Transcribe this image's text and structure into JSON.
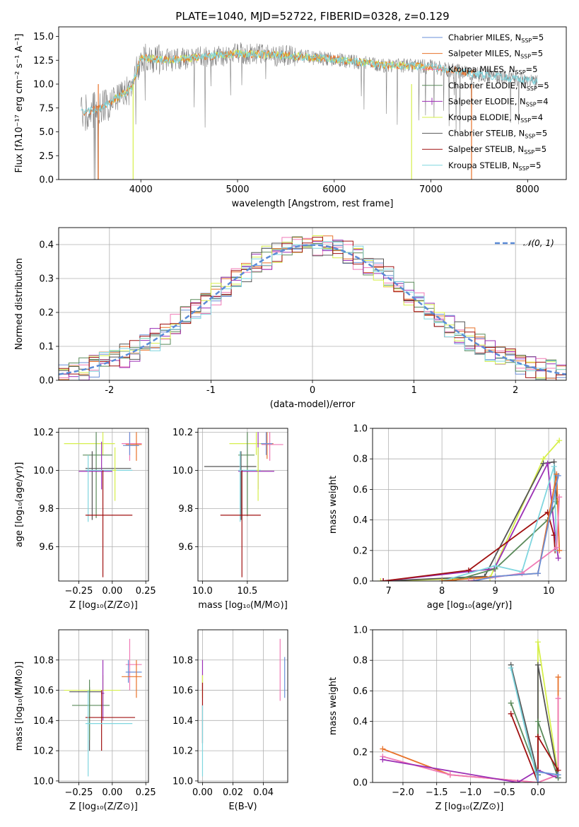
{
  "title": "PLATE=1040, MJD=52722, FIBERID=0328, z=0.129",
  "colors": {
    "chabrier_miles": "#6a8fd8",
    "salpeter_miles": "#e8722a",
    "kroupa_miles": "#f07ab6",
    "chabrier_elodie": "#5a8a5a",
    "salpeter_elodie": "#9b2fb5",
    "kroupa_elodie": "#d6ef4a",
    "chabrier_stelib": "#555555",
    "salpeter_stelib": "#a01010",
    "kroupa_stelib": "#7fd6df",
    "normal": "#5b8bd6",
    "data_grey": "#808080"
  },
  "chart_data": [
    {
      "type": "line",
      "panel": "spectrum",
      "xlabel": "wavelength [Angstrom, rest frame]",
      "ylabel": "Flux [fλ10⁻¹⁷ erg cm⁻² s⁻¹ A⁻¹]",
      "xlim": [
        3150,
        8400
      ],
      "ylim": [
        0,
        16
      ],
      "xticks": [
        4000,
        5000,
        6000,
        7000,
        8000
      ],
      "yticks": [
        0.0,
        2.5,
        5.0,
        7.5,
        10.0,
        12.5,
        15.0
      ],
      "ytick_labels": [
        "0.0",
        "2.5",
        "5.0",
        "7.5",
        "10.0",
        "12.5",
        "15.0"
      ],
      "legend": [
        "Chabrier MILES, N_SSP=5",
        "Salpeter MILES, N_SSP=5",
        "Kroupa MILES, N_SSP=5",
        "Chabrier ELODIE, N_SSP=5",
        "Salpeter ELODIE, N_SSP=4",
        "Kroupa ELODIE, N_SSP=4",
        "Chabrier STELIB, N_SSP=5",
        "Salpeter STELIB, N_SSP=5",
        "Kroupa STELIB, N_SSP=5"
      ],
      "legend_position": "upper-right",
      "continuum": {
        "x": [
          3400,
          3600,
          3900,
          4000,
          4300,
          4700,
          5000,
          5500,
          6000,
          6500,
          7000,
          7500,
          8100
        ],
        "y": [
          7.0,
          7.6,
          9.5,
          12.8,
          12.5,
          12.9,
          13.2,
          13.0,
          12.6,
          12.0,
          11.8,
          11.0,
          10.3
        ]
      }
    },
    {
      "type": "bar",
      "panel": "residual-histogram",
      "xlabel": "(data-model)/error",
      "ylabel": "Normed distribution",
      "xlim": [
        -2.5,
        2.5
      ],
      "ylim": [
        0,
        0.45
      ],
      "xticks": [
        -2,
        -1,
        0,
        1,
        2
      ],
      "yticks": [
        0.0,
        0.1,
        0.2,
        0.3,
        0.4
      ],
      "ytick_labels": [
        "0.0",
        "0.1",
        "0.2",
        "0.3",
        "0.4"
      ],
      "bin_width": 0.1,
      "bins_start": -2.5,
      "legend": [
        "𝒩(0, 1)"
      ],
      "legend_position": "upper-right",
      "normal_curve": {
        "mean": 0,
        "sigma": 1
      }
    },
    {
      "type": "scatter",
      "panel": "age-vs-Z",
      "xlabel": "Z [log₁₀(Z/Z⊙)]",
      "ylabel": "age  [log₁₀(age/yr)]",
      "xlim": [
        -0.4,
        0.27
      ],
      "ylim": [
        9.42,
        10.22
      ],
      "xticks": [
        -0.25,
        0.0,
        0.25
      ],
      "xtick_labels": [
        "−0.25",
        "0.00",
        "0.25"
      ],
      "yticks": [
        9.6,
        9.8,
        10.0,
        10.2
      ],
      "ytick_labels": [
        "9.6",
        "9.8",
        "10.0",
        "10.2"
      ],
      "errorbars": [
        {
          "c": "kroupa_elodie",
          "x": -0.07,
          "xe": [
            -0.36,
            0.02
          ],
          "y": 10.14,
          "ye": [
            10.08,
            10.2
          ]
        },
        {
          "c": "kroupa_miles",
          "x": 0.13,
          "xe": [
            0.07,
            0.22
          ],
          "y": 10.14,
          "ye": [
            10.05,
            10.2
          ]
        },
        {
          "c": "salpeter_miles",
          "x": 0.18,
          "xe": [
            0.1,
            0.22
          ],
          "y": 10.135,
          "ye": [
            10.05,
            10.2
          ]
        },
        {
          "c": "chabrier_miles",
          "x": 0.13,
          "xe": [
            0.08,
            0.2
          ],
          "y": 10.13,
          "ye": [
            10.08,
            10.2
          ]
        },
        {
          "c": "chabrier_elodie",
          "x": -0.12,
          "xe": [
            -0.22,
            0.0
          ],
          "y": 10.08,
          "ye": [
            9.75,
            10.2
          ]
        },
        {
          "c": "chabrier_stelib",
          "x": -0.15,
          "xe": [
            -0.2,
            0.14
          ],
          "y": 10.01,
          "ye": [
            9.74,
            10.1
          ]
        },
        {
          "c": "salpeter_elodie",
          "x": -0.08,
          "xe": [
            -0.25,
            0.0
          ],
          "y": 9.995,
          "ye": [
            9.9,
            10.15
          ]
        },
        {
          "c": "kroupa_stelib",
          "x": -0.18,
          "xe": [
            -0.2,
            0.15
          ],
          "y": 10.0,
          "ye": [
            9.73,
            10.08
          ]
        },
        {
          "c": "salpeter_stelib",
          "x": -0.07,
          "xe": [
            -0.2,
            0.15
          ],
          "y": 9.765,
          "ye": [
            9.44,
            10.0
          ]
        },
        {
          "c": "kroupa_elodie",
          "x": 0.02,
          "xe": [
            0.0,
            0.03
          ],
          "y": 10.0,
          "ye": [
            9.84,
            10.12
          ]
        }
      ]
    },
    {
      "type": "scatter",
      "panel": "age-vs-mass",
      "xlabel": "mass [log₁₀(M/M⊙)]",
      "xlim": [
        9.95,
        10.95
      ],
      "ylim": [
        9.42,
        10.22
      ],
      "xticks": [
        10.0,
        10.5
      ],
      "xtick_labels": [
        "10.0",
        "10.5"
      ],
      "yticks": [
        9.6,
        9.8,
        10.0,
        10.2
      ],
      "ytick_labels": [
        "9.6",
        "9.8",
        "10.0",
        "10.2"
      ],
      "errorbars": [
        {
          "c": "kroupa_elodie",
          "x": 10.6,
          "xe": [
            10.3,
            10.68
          ],
          "y": 10.14,
          "ye": [
            10.08,
            10.2
          ]
        },
        {
          "c": "kroupa_miles",
          "x": 10.75,
          "xe": [
            10.66,
            10.9
          ],
          "y": 10.135,
          "ye": [
            10.05,
            10.2
          ]
        },
        {
          "c": "salpeter_miles",
          "x": 10.72,
          "xe": [
            10.65,
            10.79
          ],
          "y": 10.14,
          "ye": [
            10.06,
            10.2
          ]
        },
        {
          "c": "chabrier_miles",
          "x": 10.71,
          "xe": [
            10.65,
            10.78
          ],
          "y": 10.14,
          "ye": [
            10.08,
            10.2
          ]
        },
        {
          "c": "chabrier_elodie",
          "x": 10.5,
          "xe": [
            10.4,
            10.58
          ],
          "y": 10.08,
          "ye": [
            9.76,
            10.2
          ]
        },
        {
          "c": "chabrier_stelib",
          "x": 10.43,
          "xe": [
            10.02,
            10.6
          ],
          "y": 10.02,
          "ye": [
            9.74,
            10.1
          ]
        },
        {
          "c": "salpeter_elodie",
          "x": 10.62,
          "xe": [
            10.4,
            10.8
          ],
          "y": 9.995,
          "ye": [
            9.9,
            10.2
          ]
        },
        {
          "c": "kroupa_stelib",
          "x": 10.42,
          "xe": [
            10.4,
            10.65
          ],
          "y": 10.0,
          "ye": [
            9.73,
            10.1
          ]
        },
        {
          "c": "salpeter_stelib",
          "x": 10.44,
          "xe": [
            10.2,
            10.65
          ],
          "y": 9.765,
          "ye": [
            9.44,
            10.0
          ]
        },
        {
          "c": "kroupa_elodie",
          "x": 10.62,
          "xe": [
            10.6,
            10.63
          ],
          "y": 10.0,
          "ye": [
            9.84,
            10.12
          ]
        }
      ]
    },
    {
      "type": "line",
      "panel": "mass-weight-vs-age",
      "xlabel": "age  [log₁₀(age/yr)]",
      "ylabel": "mass weight",
      "xlim": [
        6.7,
        10.33
      ],
      "ylim": [
        0,
        1.0
      ],
      "xticks": [
        7,
        8,
        9,
        10
      ],
      "xtick_labels": [
        "7",
        "8",
        "9",
        "10"
      ],
      "yticks": [
        0.0,
        0.2,
        0.4,
        0.6,
        0.8,
        1.0
      ],
      "ytick_labels": [
        "0.0",
        "0.2",
        "0.4",
        "0.6",
        "0.8",
        "1.0"
      ],
      "series": [
        {
          "c": "kroupa_elodie",
          "x": [
            6.85,
            8.9,
            9.9,
            10.2
          ],
          "y": [
            0.0,
            0.02,
            0.8,
            0.92
          ]
        },
        {
          "c": "chabrier_stelib",
          "x": [
            6.9,
            8.8,
            9.9,
            10.1,
            10.15
          ],
          "y": [
            0.0,
            0.03,
            0.77,
            0.78,
            0.52
          ]
        },
        {
          "c": "salpeter_elodie",
          "x": [
            6.9,
            8.98,
            9.98,
            10.12,
            10.18
          ],
          "y": [
            0.0,
            0.08,
            0.77,
            0.3,
            0.15
          ]
        },
        {
          "c": "salpeter_stelib",
          "x": [
            6.9,
            8.5,
            9.98,
            10.1,
            10.12
          ],
          "y": [
            0.0,
            0.07,
            0.45,
            0.3,
            0.2
          ]
        },
        {
          "c": "chabrier_elodie",
          "x": [
            8.2,
            9.0,
            9.98,
            10.15
          ],
          "y": [
            0.0,
            0.08,
            0.4,
            0.52
          ]
        },
        {
          "c": "kroupa_stelib",
          "x": [
            8.0,
            9.0,
            9.5,
            10.1,
            10.15
          ],
          "y": [
            0.0,
            0.1,
            0.06,
            0.75,
            0.2
          ]
        },
        {
          "c": "salpeter_miles",
          "x": [
            8.0,
            9.0,
            9.8,
            10.15,
            10.2
          ],
          "y": [
            0.0,
            0.03,
            0.05,
            0.7,
            0.2
          ]
        },
        {
          "c": "kroupa_miles",
          "x": [
            8.5,
            9.5,
            10.15,
            10.2
          ],
          "y": [
            0.0,
            0.05,
            0.22,
            0.55
          ]
        },
        {
          "c": "chabrier_miles",
          "x": [
            8.6,
            9.0,
            9.8,
            10.18
          ],
          "y": [
            0.0,
            0.03,
            0.05,
            0.69
          ]
        }
      ]
    },
    {
      "type": "scatter",
      "panel": "mass-vs-Z",
      "xlabel": "Z [log₁₀(Z/Z⊙)]",
      "ylabel": "mass [log₁₀(M/M⊙)]",
      "xlim": [
        -0.4,
        0.27
      ],
      "ylim": [
        9.99,
        11.0
      ],
      "xticks": [
        -0.25,
        0.0,
        0.25
      ],
      "xtick_labels": [
        "−0.25",
        "0.00",
        "0.25"
      ],
      "yticks": [
        10.0,
        10.2,
        10.4,
        10.6,
        10.8
      ],
      "ytick_labels": [
        "10.0",
        "10.2",
        "10.4",
        "10.6",
        "10.8"
      ],
      "errorbars": [
        {
          "c": "kroupa_miles",
          "x": 0.13,
          "xe": [
            0.1,
            0.22
          ],
          "y": 10.77,
          "ye": [
            10.6,
            10.94
          ]
        },
        {
          "c": "chabrier_miles",
          "x": 0.12,
          "xe": [
            0.1,
            0.22
          ],
          "y": 10.72,
          "ye": [
            10.65,
            10.8
          ]
        },
        {
          "c": "salpeter_miles",
          "x": 0.18,
          "xe": [
            0.07,
            0.22
          ],
          "y": 10.69,
          "ye": [
            10.55,
            10.8
          ]
        },
        {
          "c": "kroupa_elodie",
          "x": -0.07,
          "xe": [
            -0.36,
            0.06
          ],
          "y": 10.6,
          "ye": [
            10.5,
            10.7
          ]
        },
        {
          "c": "chabrier_stelib",
          "x": -0.17,
          "xe": [
            -0.32,
            -0.08
          ],
          "y": 10.59,
          "ye": [
            10.2,
            10.62
          ]
        },
        {
          "c": "chabrier_elodie",
          "x": -0.17,
          "xe": [
            -0.3,
            -0.02
          ],
          "y": 10.5,
          "ye": [
            10.27,
            10.67
          ]
        },
        {
          "c": "salpeter_elodie",
          "x": -0.07,
          "xe": [
            -0.08,
            -0.06
          ],
          "y": 10.58,
          "ye": [
            10.4,
            10.8
          ]
        },
        {
          "c": "salpeter_stelib",
          "x": -0.08,
          "xe": [
            -0.2,
            0.17
          ],
          "y": 10.42,
          "ye": [
            10.2,
            10.6
          ]
        },
        {
          "c": "kroupa_stelib",
          "x": -0.18,
          "xe": [
            -0.2,
            0.15
          ],
          "y": 10.38,
          "ye": [
            10.03,
            10.6
          ]
        }
      ]
    },
    {
      "type": "scatter",
      "panel": "mass-vs-EBV",
      "xlabel": "E(B-V)",
      "xlim": [
        -0.003,
        0.056
      ],
      "ylim": [
        9.99,
        11.0
      ],
      "xticks": [
        0.0,
        0.02,
        0.04
      ],
      "xtick_labels": [
        "0.00",
        "0.02",
        "0.04"
      ],
      "yticks": [
        10.0,
        10.2,
        10.4,
        10.6,
        10.8
      ],
      "ytick_labels": [
        "10.0",
        "10.2",
        "10.4",
        "10.6",
        "10.8"
      ],
      "errorbars": [
        {
          "c": "kroupa_miles",
          "x": 0.051,
          "xe": [
            0.051,
            0.051
          ],
          "y": 10.73,
          "ye": [
            10.53,
            10.94
          ]
        },
        {
          "c": "chabrier_miles",
          "x": 0.054,
          "xe": [
            0.054,
            0.054
          ],
          "y": 10.7,
          "ye": [
            10.55,
            10.82
          ]
        },
        {
          "c": "salpeter_elodie",
          "x": 0.0,
          "xe": [
            0.0,
            0.0
          ],
          "y": 10.7,
          "ye": [
            10.6,
            10.8
          ]
        },
        {
          "c": "kroupa_elodie",
          "x": 0.0,
          "xe": [
            0.0,
            0.0
          ],
          "y": 10.63,
          "ye": [
            10.55,
            10.7
          ]
        },
        {
          "c": "salpeter_stelib",
          "x": 0.0,
          "xe": [
            0.0,
            0.0
          ],
          "y": 10.45,
          "ye": [
            10.25,
            10.65
          ]
        },
        {
          "c": "kroupa_stelib",
          "x": 0.0,
          "xe": [
            0.0,
            0.0
          ],
          "y": 10.3,
          "ye": [
            10.03,
            10.5
          ]
        }
      ]
    },
    {
      "type": "line",
      "panel": "mass-weight-vs-Z",
      "xlabel": "Z [log₁₀(Z/Z⊙)]",
      "ylabel": "mass weight",
      "xlim": [
        -2.45,
        0.42
      ],
      "ylim": [
        0,
        1.0
      ],
      "xticks": [
        -2.0,
        -1.5,
        -1.0,
        -0.5,
        0.0
      ],
      "xtick_labels": [
        "−2.0",
        "−1.5",
        "−1.0",
        "−0.5",
        "0.0"
      ],
      "yticks": [
        0.0,
        0.2,
        0.4,
        0.6,
        0.8,
        1.0
      ],
      "ytick_labels": [
        "0.0",
        "0.2",
        "0.4",
        "0.6",
        "0.8",
        "1.0"
      ],
      "series": [
        {
          "c": "salpeter_miles",
          "x": [
            -2.3,
            -1.3,
            0.0,
            0.3,
            0.3
          ],
          "y": [
            0.22,
            0.05,
            0.0,
            0.05,
            0.69
          ]
        },
        {
          "c": "kroupa_miles",
          "x": [
            -2.3,
            -1.3,
            0.0,
            0.3,
            0.3
          ],
          "y": [
            0.17,
            0.05,
            0.0,
            0.05,
            0.55
          ]
        },
        {
          "c": "salpeter_elodie",
          "x": [
            -2.3,
            -0.3,
            0.0,
            0.3
          ],
          "y": [
            0.15,
            0.0,
            0.08,
            0.03
          ]
        },
        {
          "c": "kroupa_elodie",
          "x": [
            0.0,
            0.0,
            0.3
          ],
          "y": [
            0.0,
            0.92,
            0.05
          ]
        },
        {
          "c": "chabrier_stelib",
          "x": [
            -0.4,
            0.0,
            0.0,
            0.3
          ],
          "y": [
            0.77,
            0.05,
            0.77,
            0.03
          ]
        },
        {
          "c": "chabrier_elodie",
          "x": [
            -0.4,
            0.0,
            0.0,
            0.3
          ],
          "y": [
            0.52,
            0.05,
            0.4,
            0.03
          ]
        },
        {
          "c": "salpeter_stelib",
          "x": [
            -0.4,
            0.0,
            0.0,
            0.3
          ],
          "y": [
            0.45,
            0.0,
            0.3,
            0.08
          ]
        },
        {
          "c": "kroupa_stelib",
          "x": [
            -0.4,
            0.0,
            0.0,
            0.3
          ],
          "y": [
            0.75,
            0.0,
            0.07,
            0.05
          ]
        },
        {
          "c": "chabrier_miles",
          "x": [
            0.0,
            0.0,
            0.3
          ],
          "y": [
            0.0,
            0.07,
            0.05
          ]
        }
      ]
    }
  ]
}
